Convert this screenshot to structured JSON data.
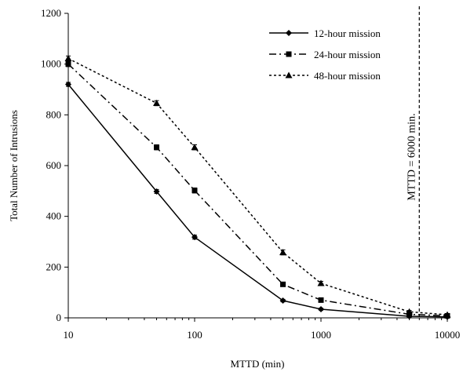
{
  "chart_data": {
    "type": "line",
    "xlabel": "MTTD (min)",
    "ylabel": "Total Number of Intrusions",
    "xscale": "log",
    "xlim": [
      10,
      10000
    ],
    "ylim": [
      0,
      1200
    ],
    "x_ticks": [
      "10",
      "100",
      "1000",
      "10000"
    ],
    "y_ticks": [
      "0",
      "200",
      "400",
      "600",
      "800",
      "1000",
      "1200"
    ],
    "legend_position": "top-right",
    "grid": false,
    "error_bars": true,
    "x": [
      10,
      50,
      100,
      500,
      1000,
      5000,
      10000
    ],
    "series": [
      {
        "name": "12-hour mission",
        "values": [
          920,
          498,
          318,
          68,
          34,
          6,
          4
        ],
        "error": [
          8,
          8,
          8,
          5,
          4,
          3,
          3
        ],
        "marker": "diamond",
        "line_style": "solid",
        "color": "#000000"
      },
      {
        "name": "24-hour mission",
        "values": [
          1000,
          672,
          502,
          132,
          70,
          14,
          8
        ],
        "error": [
          10,
          10,
          10,
          8,
          6,
          4,
          3
        ],
        "marker": "square",
        "line_style": "dash-dot",
        "color": "#000000"
      },
      {
        "name": "48-hour mission",
        "values": [
          1022,
          846,
          672,
          258,
          136,
          24,
          12
        ],
        "error": [
          10,
          10,
          10,
          10,
          8,
          5,
          4
        ],
        "marker": "triangle",
        "line_style": "dotted",
        "color": "#000000"
      }
    ],
    "annotation": {
      "text": "MTTD = 6000 min.",
      "x": 6000
    }
  }
}
